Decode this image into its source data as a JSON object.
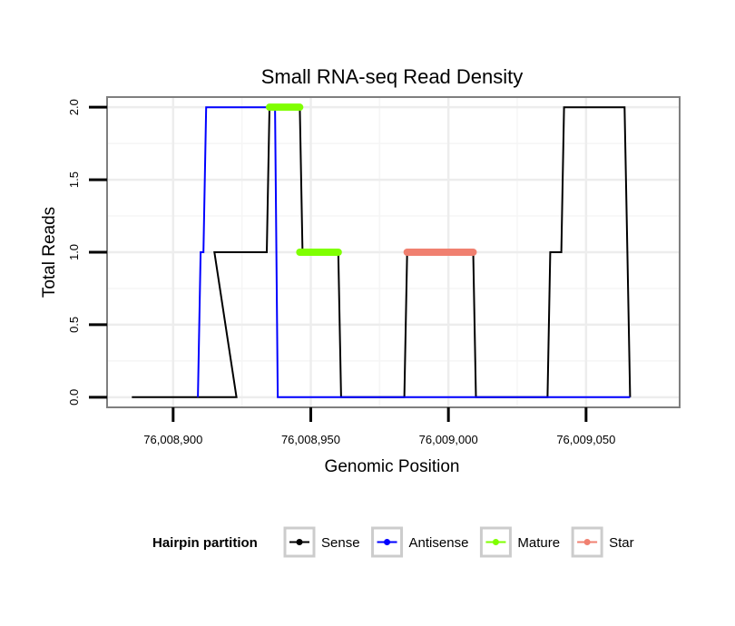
{
  "chart_data": {
    "type": "line",
    "title": "Small RNA-seq Read Density",
    "xlabel": "Genomic Position",
    "ylabel": "Total Reads",
    "xlim": [
      76008876,
      76009084
    ],
    "ylim": [
      -0.07,
      2.07
    ],
    "x_ticks": [
      {
        "value": 76008900,
        "label": "76,008,900"
      },
      {
        "value": 76008950,
        "label": "76,008,950"
      },
      {
        "value": 76009000,
        "label": "76,009,000"
      },
      {
        "value": 76009050,
        "label": "76,009,050"
      }
    ],
    "y_ticks": [
      {
        "value": 0.0,
        "label": "0.0"
      },
      {
        "value": 0.5,
        "label": "0.5"
      },
      {
        "value": 1.0,
        "label": "1.0"
      },
      {
        "value": 1.5,
        "label": "1.5"
      },
      {
        "value": 2.0,
        "label": "2.0"
      }
    ],
    "grid": true,
    "legend": {
      "title": "Hairpin partition",
      "position": "bottom"
    },
    "series": [
      {
        "name": "Sense",
        "color": "#000000",
        "width": 2,
        "x": [
          76008885,
          76008923,
          76008915,
          76008920,
          76008934,
          76008935,
          76008937,
          76008946,
          76008947,
          76008960,
          76008961,
          76008984,
          76008985,
          76009009,
          76009010,
          76009036,
          76009037,
          76009041,
          76009042,
          76009064,
          76009065,
          76009066
        ],
        "y": [
          0,
          0,
          1,
          1,
          1,
          2,
          2,
          2,
          1,
          1,
          0,
          0,
          1,
          1,
          0,
          0,
          1,
          1,
          2,
          2,
          1,
          0
        ]
      },
      {
        "name": "Antisense",
        "color": "#0000ff",
        "width": 2,
        "x": [
          76008909,
          76008910,
          76008911,
          76008912,
          76008937,
          76008938,
          76009066
        ],
        "y": [
          0,
          1,
          1,
          2,
          2,
          0,
          0
        ]
      },
      {
        "name": "Mature",
        "color": "#7fff00",
        "width": 8,
        "segments": [
          {
            "x": [
              76008935,
              76008946
            ],
            "y": [
              2,
              2
            ]
          },
          {
            "x": [
              76008946,
              76008960
            ],
            "y": [
              1,
              1
            ]
          }
        ]
      },
      {
        "name": "Star",
        "color": "#f08070",
        "width": 8,
        "segments": [
          {
            "x": [
              76008985,
              76009009
            ],
            "y": [
              1,
              1
            ]
          }
        ]
      }
    ]
  }
}
